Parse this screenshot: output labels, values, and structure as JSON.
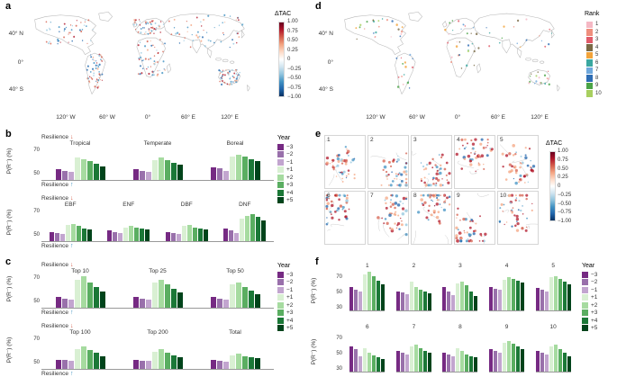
{
  "figure": {
    "panels": {
      "a": "a",
      "b": "b",
      "c": "c",
      "d": "d",
      "e": "e",
      "f": "f"
    }
  },
  "maps": {
    "lat_ticks": [
      "40° N",
      "0°",
      "40° S"
    ],
    "lon_ticks": [
      "120° W",
      "60° W",
      "0°",
      "60° E",
      "120° E"
    ]
  },
  "map_palettes": {
    "dtac_points": [
      "#b2182b",
      "#d6604d",
      "#f4a582",
      "#92c5de",
      "#4393c3",
      "#2166ac"
    ]
  },
  "colorbars": {
    "dtac": {
      "title": "ΔTAC",
      "stops": [
        "#67001f",
        "#b2182b",
        "#d6604d",
        "#f4a582",
        "#fddbc7",
        "#ffffff",
        "#d1e5f0",
        "#92c5de",
        "#4393c3",
        "#2166ac",
        "#053061"
      ],
      "ticks": [
        "1.00",
        "0.75",
        "0.50",
        "0.25",
        "0",
        "−0.25",
        "−0.50",
        "−0.75",
        "−1.00"
      ]
    },
    "rank": {
      "title": "Rank",
      "entries": [
        {
          "label": "1",
          "color": "#f5b8c4"
        },
        {
          "label": "2",
          "color": "#ef8e7d"
        },
        {
          "label": "3",
          "color": "#e05c6a"
        },
        {
          "label": "4",
          "color": "#7a6a46"
        },
        {
          "label": "5",
          "color": "#f2a33a"
        },
        {
          "label": "6",
          "color": "#3aa7a0"
        },
        {
          "label": "7",
          "color": "#6fa8dc"
        },
        {
          "label": "8",
          "color": "#2e6db4"
        },
        {
          "label": "9",
          "color": "#4ba446"
        },
        {
          "label": "10",
          "color": "#a8cf5f"
        }
      ]
    }
  },
  "year_legend": {
    "title": "Year",
    "entries": [
      {
        "label": "−3",
        "color": "#762a83"
      },
      {
        "label": "−2",
        "color": "#9970ab"
      },
      {
        "label": "−1",
        "color": "#c2a5cf"
      },
      {
        "label": "+1",
        "color": "#d9f0d3"
      },
      {
        "label": "+2",
        "color": "#a6dba0"
      },
      {
        "label": "+3",
        "color": "#5aae61"
      },
      {
        "label": "+4",
        "color": "#1b7837"
      },
      {
        "label": "+5",
        "color": "#00441b"
      }
    ]
  },
  "axis": {
    "ylabel": "P(R⁻) (%)"
  },
  "resilience": {
    "label": "Resilience",
    "down_arrow": "↓",
    "up_arrow": "↑",
    "down_color": "#d6604d",
    "up_color": "#4393c3"
  },
  "panels_e": {
    "regions": [
      "1",
      "2",
      "3",
      "4",
      "5",
      "6",
      "7",
      "8",
      "9",
      "10"
    ]
  },
  "chart_data": [
    {
      "id": "b1",
      "type": "bar",
      "ylabel": "P(R⁻) (%)",
      "ylim": [
        44,
        78
      ],
      "yticks": [
        70,
        50
      ],
      "resilience": true,
      "baseline": "full",
      "years": [
        "−3",
        "−2",
        "−1",
        "+1",
        "+2",
        "+3",
        "+4",
        "+5"
      ],
      "groups": [
        {
          "name": "Tropical",
          "values": [
            53,
            52,
            51,
            63,
            62,
            60,
            58,
            56
          ]
        },
        {
          "name": "Temperate",
          "values": [
            53,
            52,
            51,
            61,
            63,
            61,
            59,
            57
          ]
        },
        {
          "name": "Boreal",
          "values": [
            55,
            54,
            52,
            64,
            66,
            64,
            62,
            60
          ]
        }
      ]
    },
    {
      "id": "b2",
      "type": "bar",
      "ylabel": "P(R⁻) (%)",
      "ylim": [
        44,
        78
      ],
      "yticks": [
        70,
        50
      ],
      "resilience": true,
      "baseline": "full",
      "years": [
        "−3",
        "−2",
        "−1",
        "+1",
        "+2",
        "+3",
        "+4",
        "+5"
      ],
      "groups": [
        {
          "name": "EBF",
          "values": [
            52,
            51,
            50,
            58,
            59,
            57,
            55,
            54
          ]
        },
        {
          "name": "ENF",
          "values": [
            53,
            52,
            51,
            56,
            57,
            56,
            55,
            54
          ]
        },
        {
          "name": "DBF",
          "values": [
            52,
            51,
            50,
            57,
            58,
            56,
            55,
            54
          ]
        },
        {
          "name": "DNF",
          "values": [
            55,
            53,
            51,
            63,
            66,
            67,
            65,
            62
          ]
        }
      ]
    },
    {
      "id": "c1",
      "type": "bar",
      "ylabel": "P(R⁻) (%)",
      "ylim": [
        44,
        78
      ],
      "yticks": [
        70,
        50
      ],
      "resilience": true,
      "baseline": "full",
      "years": [
        "−3",
        "−2",
        "−1",
        "+1",
        "+2",
        "+3",
        "+4",
        "+5"
      ],
      "groups": [
        {
          "name": "Top 10",
          "values": [
            53,
            52,
            51,
            68,
            71,
            66,
            62,
            58
          ]
        },
        {
          "name": "Top 25",
          "values": [
            53,
            52,
            51,
            66,
            68,
            64,
            60,
            57
          ]
        },
        {
          "name": "Top 50",
          "values": [
            53,
            52,
            51,
            64,
            66,
            62,
            59,
            56
          ]
        }
      ]
    },
    {
      "id": "c2",
      "type": "bar",
      "ylabel": "P(R⁻) (%)",
      "ylim": [
        44,
        78
      ],
      "yticks": [
        70,
        50
      ],
      "resilience": true,
      "baseline": "full",
      "years": [
        "−3",
        "−2",
        "−1",
        "+1",
        "+2",
        "+3",
        "+4",
        "+5"
      ],
      "groups": [
        {
          "name": "Top 100",
          "values": [
            52,
            52,
            51,
            61,
            63,
            60,
            58,
            55
          ]
        },
        {
          "name": "Top 200",
          "values": [
            52,
            51,
            51,
            59,
            61,
            58,
            56,
            54
          ]
        },
        {
          "name": "Total",
          "values": [
            52,
            51,
            50,
            56,
            57,
            55,
            54,
            53
          ]
        }
      ]
    },
    {
      "id": "f1",
      "type": "bar",
      "ylabel": "P(R⁻) (%)",
      "ylim": [
        25,
        80
      ],
      "yticks": [
        70,
        50,
        30
      ],
      "resilience": false,
      "baseline": "group",
      "years": [
        "−3",
        "−2",
        "−1",
        "+1",
        "+2",
        "+3",
        "+4",
        "+5"
      ],
      "groups": [
        {
          "name": "1",
          "values": [
            56,
            53,
            50,
            73,
            76,
            70,
            65,
            60
          ]
        },
        {
          "name": "2",
          "values": [
            50,
            49,
            47,
            63,
            56,
            52,
            50,
            48
          ]
        },
        {
          "name": "3",
          "values": [
            56,
            50,
            45,
            61,
            63,
            58,
            50,
            44
          ]
        },
        {
          "name": "4",
          "values": [
            56,
            54,
            52,
            66,
            69,
            67,
            64,
            62
          ]
        },
        {
          "name": "5",
          "values": [
            55,
            53,
            50,
            69,
            71,
            67,
            63,
            60
          ]
        }
      ]
    },
    {
      "id": "f2",
      "type": "bar",
      "ylabel": "P(R⁻) (%)",
      "ylim": [
        25,
        80
      ],
      "yticks": [
        70,
        50,
        30
      ],
      "resilience": false,
      "baseline": "group",
      "years": [
        "−3",
        "−2",
        "−1",
        "+1",
        "+2",
        "+3",
        "+4",
        "+5"
      ],
      "groups": [
        {
          "name": "6",
          "values": [
            58,
            55,
            45,
            56,
            50,
            47,
            44,
            42
          ]
        },
        {
          "name": "7",
          "values": [
            52,
            50,
            48,
            59,
            61,
            56,
            52,
            50
          ]
        },
        {
          "name": "8",
          "values": [
            50,
            48,
            45,
            56,
            52,
            48,
            45,
            44
          ]
        },
        {
          "name": "9",
          "values": [
            55,
            52,
            50,
            63,
            66,
            62,
            58,
            55
          ]
        },
        {
          "name": "10",
          "values": [
            52,
            50,
            48,
            59,
            61,
            55,
            50,
            45
          ]
        }
      ]
    }
  ]
}
